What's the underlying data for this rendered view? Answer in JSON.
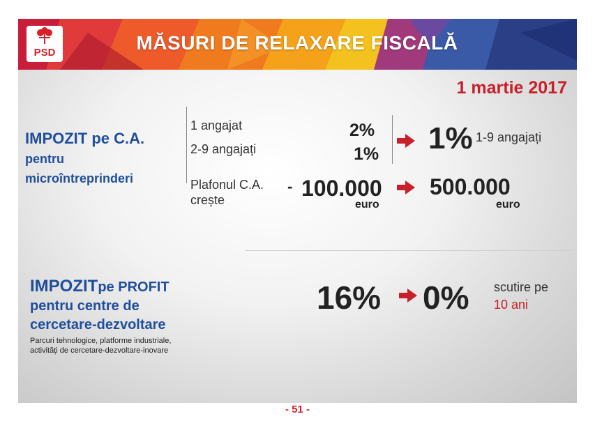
{
  "header": {
    "logo_text": "PSD",
    "title": "MĂSURI DE RELAXARE FISCALĂ"
  },
  "date": "1 martie 2017",
  "section1": {
    "title_line1": "IMPOZIT pe C.A.",
    "title_line2": "pentru",
    "title_line3": "microîntreprinderi",
    "row1_label": "1 angajat",
    "row1_value": "2%",
    "row2_label": "2-9 angajați",
    "row2_value": "1%",
    "new_rate": "1%",
    "new_rate_label": "1-9 angajați",
    "plafon_line1": "Plafonul C.A.",
    "plafon_line2": "crește",
    "dash": "-",
    "old_limit": "100.000",
    "old_limit_unit": "euro",
    "new_limit": "500.000",
    "new_limit_unit": "euro"
  },
  "section2": {
    "title_part1": "IMPOZIT",
    "title_part2": "pe PROFIT",
    "title_line2": "pentru centre de",
    "title_line3": "cercetare-dezvoltare",
    "note_line1": "Parcuri tehnologice, platforme industriale,",
    "note_line2": "activități de cercetare-dezvoltare-inovare",
    "old_rate": "16%",
    "new_rate": "0%",
    "exempt_line1": "scutire pe",
    "exempt_line2": "10 ani"
  },
  "footer": {
    "page": "- 51 -"
  },
  "colors": {
    "brand_red": "#d81f26",
    "accent_red": "#c8202a",
    "title_blue": "#1f4e9d"
  }
}
